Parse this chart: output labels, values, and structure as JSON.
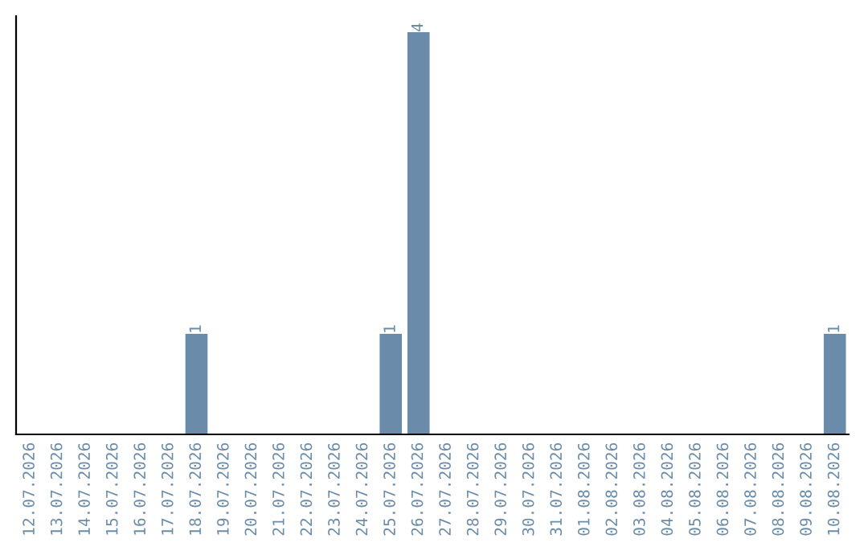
{
  "chart_data": {
    "type": "bar",
    "categories": [
      "12.07.2026",
      "13.07.2026",
      "14.07.2026",
      "15.07.2026",
      "16.07.2026",
      "17.07.2026",
      "18.07.2026",
      "19.07.2026",
      "20.07.2026",
      "21.07.2026",
      "22.07.2026",
      "23.07.2026",
      "24.07.2026",
      "25.07.2026",
      "26.07.2026",
      "27.07.2026",
      "28.07.2026",
      "29.07.2026",
      "30.07.2026",
      "31.07.2026",
      "01.08.2026",
      "02.08.2026",
      "03.08.2026",
      "04.08.2026",
      "05.08.2026",
      "06.08.2026",
      "07.08.2026",
      "08.08.2026",
      "09.08.2026",
      "10.08.2026"
    ],
    "values": [
      0,
      0,
      0,
      0,
      0,
      0,
      1,
      0,
      0,
      0,
      0,
      0,
      0,
      1,
      4,
      0,
      0,
      0,
      0,
      0,
      0,
      0,
      0,
      0,
      0,
      0,
      0,
      0,
      0,
      1
    ],
    "value_labels": [
      null,
      null,
      null,
      null,
      null,
      null,
      "1",
      null,
      null,
      null,
      null,
      null,
      null,
      "1",
      "4",
      null,
      null,
      null,
      null,
      null,
      null,
      null,
      null,
      null,
      null,
      null,
      null,
      null,
      null,
      "1"
    ],
    "color": "#6a8caa",
    "tick_labels": "x",
    "grid": false
  }
}
